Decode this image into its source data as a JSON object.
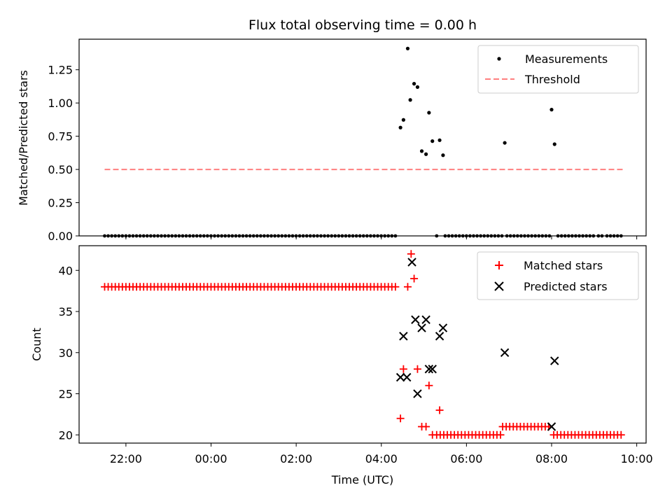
{
  "chart_data": {
    "type": "scatter",
    "title": "Flux total observing time = 0.00 h",
    "xlabel": "Time (UTC)",
    "xlim": [
      20.9,
      34.22
    ],
    "x_tick_values": [
      22,
      24,
      26,
      28,
      30,
      32,
      34
    ],
    "x_tick_labels": [
      "22:00",
      "00:00",
      "02:00",
      "04:00",
      "06:00",
      "08:00",
      "10:00"
    ],
    "top_panel": {
      "ylabel": "Matched/Predicted stars",
      "ylim": [
        0,
        1.48
      ],
      "y_ticks": [
        "0.00",
        "0.25",
        "0.50",
        "0.75",
        "1.00",
        "1.25"
      ],
      "legend": {
        "placement": "top-right",
        "measurements_label": "Measurements",
        "threshold_label": "Threshold"
      },
      "threshold": {
        "value": 0.5,
        "x_start": 21.5,
        "x_end": 33.7,
        "color": "#ff7f7f"
      },
      "measurement_color": "#000000",
      "zero_ranges": [
        [
          21.5,
          28.4
        ],
        [
          29.3,
          29.3
        ],
        [
          29.5,
          30.85
        ],
        [
          30.95,
          32.0
        ],
        [
          32.15,
          33.0
        ],
        [
          33.1,
          33.2
        ],
        [
          33.3,
          33.65
        ]
      ],
      "zero_step": 0.0833,
      "points": [
        [
          28.45,
          0.815
        ],
        [
          28.52,
          0.873
        ],
        [
          28.62,
          1.41
        ],
        [
          28.68,
          1.023
        ],
        [
          28.77,
          1.145
        ],
        [
          28.85,
          1.12
        ],
        [
          28.95,
          0.638
        ],
        [
          29.05,
          0.615
        ],
        [
          29.12,
          0.927
        ],
        [
          29.2,
          0.713
        ],
        [
          29.37,
          0.72
        ],
        [
          29.45,
          0.607
        ],
        [
          30.9,
          0.7
        ],
        [
          32.0,
          0.95
        ],
        [
          32.07,
          0.69
        ]
      ]
    },
    "bottom_panel": {
      "ylabel": "Count",
      "ylim": [
        19,
        43
      ],
      "y_ticks": [
        "20",
        "25",
        "30",
        "35",
        "40"
      ],
      "legend": {
        "placement": "top-right",
        "matched_label": "Matched stars",
        "predicted_label": "Predicted stars"
      },
      "matched_color": "#ff0000",
      "predicted_color": "#000000",
      "matched_runs": [
        {
          "from": 21.5,
          "to": 28.4,
          "value": 38
        },
        {
          "from": 29.3,
          "to": 30.8,
          "value": 20
        },
        {
          "from": 30.85,
          "to": 32.0,
          "value": 21
        },
        {
          "from": 32.05,
          "to": 33.7,
          "value": 20
        }
      ],
      "matched_step": 0.0833,
      "matched_points": [
        [
          28.45,
          22
        ],
        [
          28.52,
          28
        ],
        [
          28.62,
          38
        ],
        [
          28.7,
          42
        ],
        [
          28.77,
          39
        ],
        [
          28.85,
          28
        ],
        [
          28.95,
          21
        ],
        [
          29.05,
          21
        ],
        [
          29.12,
          26
        ],
        [
          29.2,
          20
        ],
        [
          29.37,
          23
        ]
      ],
      "predicted_points": [
        [
          28.45,
          27
        ],
        [
          28.52,
          32
        ],
        [
          28.6,
          27
        ],
        [
          28.72,
          41
        ],
        [
          28.8,
          34
        ],
        [
          28.85,
          25
        ],
        [
          28.95,
          33
        ],
        [
          29.05,
          34
        ],
        [
          29.12,
          28
        ],
        [
          29.2,
          28
        ],
        [
          29.37,
          32
        ],
        [
          29.45,
          33
        ],
        [
          30.9,
          30
        ],
        [
          32.0,
          21
        ],
        [
          32.07,
          29
        ]
      ]
    }
  }
}
